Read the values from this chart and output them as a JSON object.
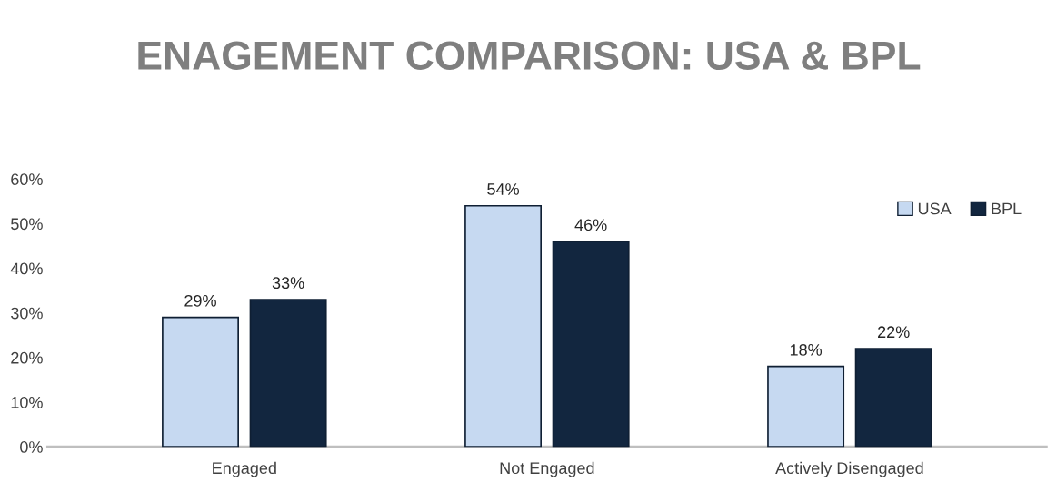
{
  "chart_data": {
    "type": "bar",
    "title": "ENAGEMENT COMPARISON: USA & BPL",
    "categories": [
      "Engaged",
      "Not Engaged",
      "Actively Disengaged"
    ],
    "series": [
      {
        "name": "USA",
        "color": "#c6d9f1",
        "values": [
          29,
          54,
          18
        ],
        "value_labels": [
          "29%",
          "54%",
          "18%"
        ]
      },
      {
        "name": "BPL",
        "color": "#12263f",
        "values": [
          33,
          46,
          22
        ],
        "value_labels": [
          "33%",
          "46%",
          "22%"
        ]
      }
    ],
    "ylim": [
      0,
      60
    ],
    "yticks": [
      {
        "value": 0,
        "label": "0%"
      },
      {
        "value": 10,
        "label": "10%"
      },
      {
        "value": 20,
        "label": "20%"
      },
      {
        "value": 30,
        "label": "30%"
      },
      {
        "value": 40,
        "label": "40%"
      },
      {
        "value": 50,
        "label": "50%"
      },
      {
        "value": 60,
        "label": "60%"
      }
    ],
    "grid": false,
    "legend": "top right"
  }
}
